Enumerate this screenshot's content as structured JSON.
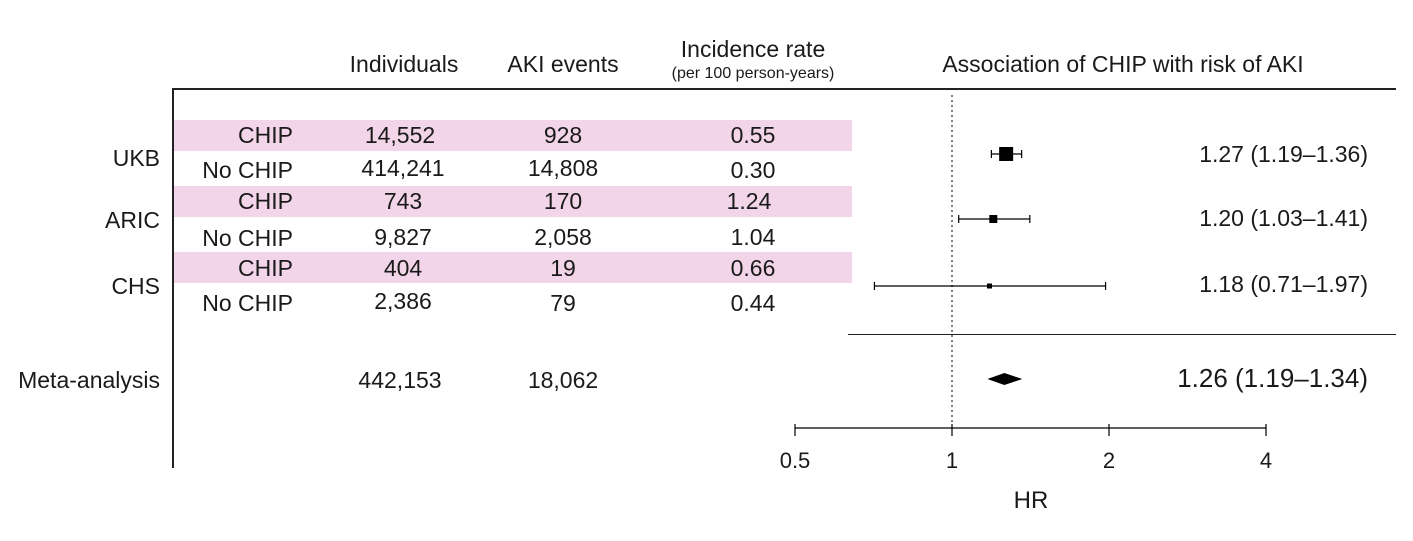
{
  "headers": {
    "individuals": "Individuals",
    "aki_events": "AKI events",
    "incidence_rate": "Incidence rate",
    "incidence_rate_sub": "(per 100 person-years)",
    "association": "Association of CHIP with risk of AKI"
  },
  "cohorts": [
    {
      "name": "UKB",
      "rows": [
        {
          "group": "CHIP",
          "individuals": "14,552",
          "aki_events": "928",
          "incidence_rate": "0.55"
        },
        {
          "group": "No CHIP",
          "individuals": "414,241",
          "aki_events": "14,808",
          "incidence_rate": "0.30"
        }
      ],
      "hr_label": "1.27 (1.19–1.36)"
    },
    {
      "name": "ARIC",
      "rows": [
        {
          "group": "CHIP",
          "individuals": "743",
          "aki_events": "170",
          "incidence_rate": "1.24"
        },
        {
          "group": "No CHIP",
          "individuals": "9,827",
          "aki_events": "2,058",
          "incidence_rate": "1.04"
        }
      ],
      "hr_label": "1.20 (1.03–1.41)"
    },
    {
      "name": "CHS",
      "rows": [
        {
          "group": "CHIP",
          "individuals": "404",
          "aki_events": "19",
          "incidence_rate": "0.66"
        },
        {
          "group": "No CHIP",
          "individuals": "2,386",
          "aki_events": "79",
          "incidence_rate": "0.44"
        }
      ],
      "hr_label": "1.18 (0.71–1.97)"
    }
  ],
  "meta": {
    "label": "Meta-analysis",
    "individuals": "442,153",
    "aki_events": "18,062",
    "hr_label": "1.26 (1.19–1.34)"
  },
  "chart_data": {
    "type": "forest",
    "title": "Association of CHIP with risk of AKI",
    "xlabel": "HR",
    "xscale": "log2",
    "xlim": [
      0.5,
      4
    ],
    "ticks": [
      0.5,
      1,
      2,
      4
    ],
    "tick_labels": [
      "0.5",
      "1",
      "2",
      "4"
    ],
    "reference_line": 1,
    "estimates": [
      {
        "name": "UKB",
        "hr": 1.27,
        "lo": 1.19,
        "hi": 1.36,
        "weight": "large"
      },
      {
        "name": "ARIC",
        "hr": 1.2,
        "lo": 1.03,
        "hi": 1.41,
        "weight": "small"
      },
      {
        "name": "CHS",
        "hr": 1.18,
        "lo": 0.71,
        "hi": 1.97,
        "weight": "tiny"
      }
    ],
    "summary": {
      "name": "Meta-analysis",
      "hr": 1.26,
      "lo": 1.19,
      "hi": 1.34
    },
    "colors": {
      "highlight_band": "#f2d5e8",
      "ink": "#000000"
    }
  }
}
